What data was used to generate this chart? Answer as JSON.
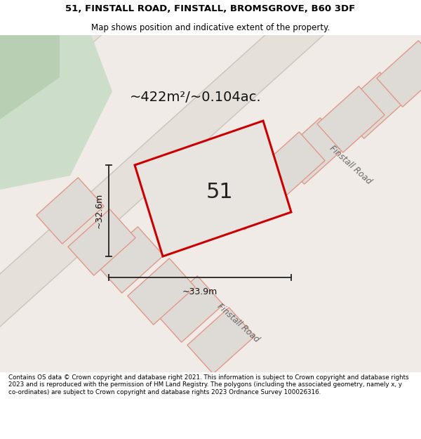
{
  "title_line1": "51, FINSTALL ROAD, FINSTALL, BROMSGROVE, B60 3DF",
  "title_line2": "Map shows position and indicative extent of the property.",
  "footer_text": "Contains OS data © Crown copyright and database right 2021. This information is subject to Crown copyright and database rights 2023 and is reproduced with the permission of HM Land Registry. The polygons (including the associated geometry, namely x, y co-ordinates) are subject to Crown copyright and database rights 2023 Ordnance Survey 100026316.",
  "area_label": "~422m²/~0.104ac.",
  "width_label": "~33.9m",
  "height_label": "~32.6m",
  "plot_number": "51",
  "bg_color": "#f0ebe6",
  "plot_fill": "#e8e4e0",
  "plot_outline_color": "#cc0000",
  "neighbor_fill": "#dedbd7",
  "neighbor_outline": "#e09888",
  "green_light": "#ccdeca",
  "green_dark": "#b8cfb4",
  "road_fill": "#e6e0da",
  "road_edge": "#cfc8c0",
  "road_label_color": "#666666",
  "dim_line_color": "#222222",
  "white": "#ffffff",
  "footer_fontsize": 6.3,
  "header_fontsize1": 9.5,
  "header_fontsize2": 8.5
}
